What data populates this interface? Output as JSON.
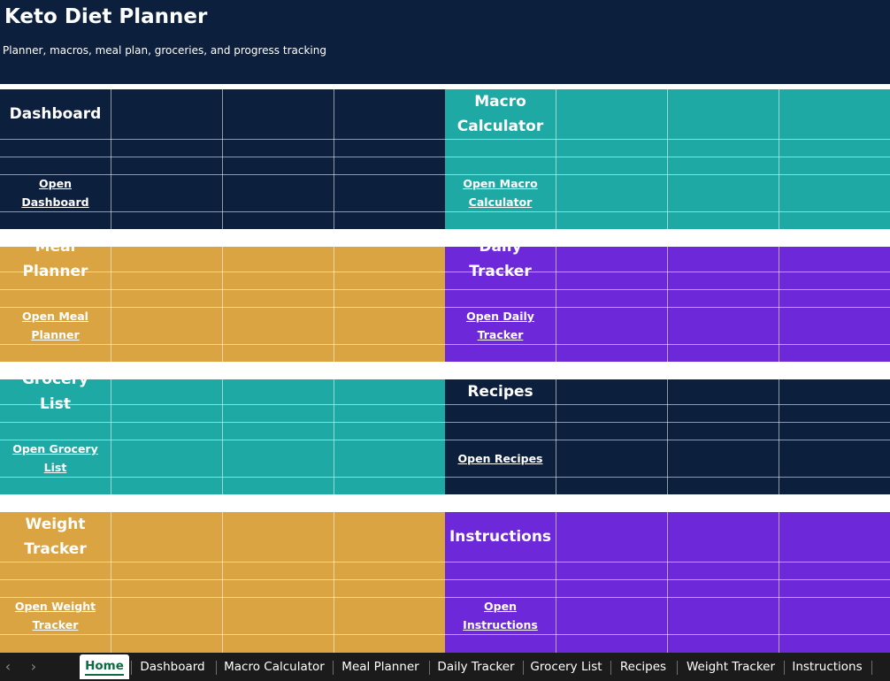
{
  "header": {
    "title": "Keto Diet Planner",
    "subtitle": "Planner, macros, meal plan, groceries, and progress tracking"
  },
  "colors": {
    "navy": "#0c1f3d",
    "teal": "#1fa9a5",
    "gold": "#d9a441",
    "purple": "#6d28d9",
    "tabbar": "#1b1b1b",
    "active_tab_text": "#0b6b43"
  },
  "blocks": [
    {
      "id": "dashboard",
      "title": "Dashboard",
      "link": "Open Dashboard",
      "color": "#0c1f3d"
    },
    {
      "id": "macro-calculator",
      "title": "Macro Calculator",
      "link": "Open Macro Calculator",
      "color": "#1fa9a5"
    },
    {
      "id": "meal-planner",
      "title": "Meal Planner",
      "link": "Open Meal Planner",
      "color": "#d9a441"
    },
    {
      "id": "daily-tracker",
      "title": "Daily Tracker",
      "link": "Open Daily Tracker",
      "color": "#6d28d9"
    },
    {
      "id": "grocery-list",
      "title": "Grocery List",
      "link": "Open Grocery List",
      "color": "#1fa9a5"
    },
    {
      "id": "recipes",
      "title": "Recipes",
      "link": "Open Recipes",
      "color": "#0c1f3d"
    },
    {
      "id": "weight-tracker",
      "title": "Weight Tracker",
      "link": "Open Weight Tracker",
      "color": "#d9a441"
    },
    {
      "id": "instructions",
      "title": "Instructions",
      "link": "Open Instructions",
      "color": "#6d28d9"
    }
  ],
  "tabs": {
    "prev_icon": "chevron-left-icon",
    "next_icon": "chevron-right-icon",
    "active": "Home",
    "items": [
      "Home",
      "Dashboard",
      "Macro Calculator",
      "Meal Planner",
      "Daily Tracker",
      "Grocery List",
      "Recipes",
      "Weight Tracker",
      "Instructions"
    ]
  }
}
